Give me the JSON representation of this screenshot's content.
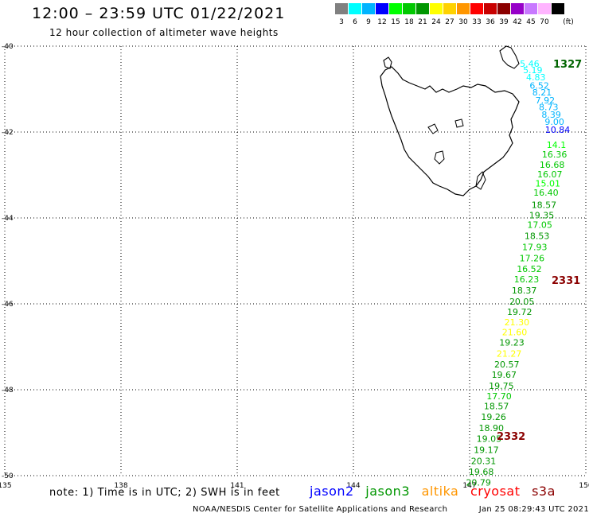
{
  "header": {
    "title": "12:00 – 23:59 UTC 01/22/2021",
    "subtitle": "12 hour collection of altimeter wave heights"
  },
  "color_scale": {
    "unit_label": "(ft)",
    "bins": [
      {
        "label": "3",
        "color": "#808080"
      },
      {
        "label": "6",
        "color": "#00ffff"
      },
      {
        "label": "9",
        "color": "#00b4ff"
      },
      {
        "label": "12",
        "color": "#0000ff"
      },
      {
        "label": "15",
        "color": "#00ff00"
      },
      {
        "label": "18",
        "color": "#00c800"
      },
      {
        "label": "21",
        "color": "#009600"
      },
      {
        "label": "24",
        "color": "#ffff00"
      },
      {
        "label": "27",
        "color": "#ffd200"
      },
      {
        "label": "30",
        "color": "#ff9600"
      },
      {
        "label": "33",
        "color": "#ff0000"
      },
      {
        "label": "36",
        "color": "#c80000"
      },
      {
        "label": "39",
        "color": "#8b0000"
      },
      {
        "label": "42",
        "color": "#9600c8"
      },
      {
        "label": "45",
        "color": "#c878ff"
      },
      {
        "label": "70",
        "color": "#ffb4ff"
      },
      {
        "label": "",
        "color": "#000000"
      }
    ]
  },
  "map": {
    "lon_range": [
      135,
      150
    ],
    "lat_range": [
      -50,
      -40
    ],
    "lon_labels": [
      "135",
      "138",
      "141",
      "144",
      "147",
      "150"
    ],
    "lat_labels": [
      "-40",
      "-42",
      "-44",
      "-46",
      "-48",
      "-50"
    ],
    "landmass": "Tasmania",
    "track_labels": [
      {
        "text": "1327",
        "color": "#006400"
      },
      {
        "text": "2331",
        "color": "#8b0000"
      },
      {
        "text": "2332",
        "color": "#8b0000"
      }
    ],
    "observations": [
      {
        "value": "5.46",
        "lon": 148.55,
        "lat": -40.48,
        "color": "#00ffff"
      },
      {
        "value": "5.19",
        "lon": 148.63,
        "lat": -40.63,
        "color": "#00ffff"
      },
      {
        "value": "4.83",
        "lon": 148.71,
        "lat": -40.8,
        "color": "#00ffff"
      },
      {
        "value": "6.52",
        "lon": 148.8,
        "lat": -40.99,
        "color": "#00b4ff"
      },
      {
        "value": "8.21",
        "lon": 148.87,
        "lat": -41.15,
        "color": "#00b4ff"
      },
      {
        "value": "7.92",
        "lon": 148.95,
        "lat": -41.33,
        "color": "#00b4ff"
      },
      {
        "value": "8.73",
        "lon": 149.04,
        "lat": -41.49,
        "color": "#00b4ff"
      },
      {
        "value": "8.39",
        "lon": 149.11,
        "lat": -41.67,
        "color": "#00b4ff"
      },
      {
        "value": "9.00",
        "lon": 149.19,
        "lat": -41.83,
        "color": "#00b4ff"
      },
      {
        "value": "10.84",
        "lon": 149.27,
        "lat": -42.02,
        "color": "#0000ff"
      },
      {
        "value": "14.1",
        "lon": 149.24,
        "lat": -42.37,
        "color": "#00ff00"
      },
      {
        "value": "16.36",
        "lon": 149.19,
        "lat": -42.59,
        "color": "#00c800"
      },
      {
        "value": "16.68",
        "lon": 149.13,
        "lat": -42.83,
        "color": "#00c800"
      },
      {
        "value": "16.07",
        "lon": 149.07,
        "lat": -43.06,
        "color": "#00c800"
      },
      {
        "value": "15.01",
        "lon": 149.02,
        "lat": -43.27,
        "color": "#00ff00"
      },
      {
        "value": "16.40",
        "lon": 148.97,
        "lat": -43.48,
        "color": "#00c800"
      },
      {
        "value": "18.57",
        "lon": 148.92,
        "lat": -43.77,
        "color": "#009600"
      },
      {
        "value": "19.35",
        "lon": 148.86,
        "lat": -44.01,
        "color": "#009600"
      },
      {
        "value": "17.05",
        "lon": 148.81,
        "lat": -44.23,
        "color": "#00c800"
      },
      {
        "value": "18.53",
        "lon": 148.74,
        "lat": -44.49,
        "color": "#009600"
      },
      {
        "value": "17.93",
        "lon": 148.68,
        "lat": -44.75,
        "color": "#00c800"
      },
      {
        "value": "17.26",
        "lon": 148.61,
        "lat": -45.01,
        "color": "#00c800"
      },
      {
        "value": "16.52",
        "lon": 148.54,
        "lat": -45.26,
        "color": "#00c800"
      },
      {
        "value": "16.23",
        "lon": 148.47,
        "lat": -45.5,
        "color": "#00c800"
      },
      {
        "value": "18.37",
        "lon": 148.41,
        "lat": -45.76,
        "color": "#009600"
      },
      {
        "value": "20.05",
        "lon": 148.35,
        "lat": -46.02,
        "color": "#009600"
      },
      {
        "value": "19.72",
        "lon": 148.29,
        "lat": -46.26,
        "color": "#009600"
      },
      {
        "value": "21.30",
        "lon": 148.22,
        "lat": -46.5,
        "color": "#ffff00"
      },
      {
        "value": "21.60",
        "lon": 148.16,
        "lat": -46.73,
        "color": "#ffff00"
      },
      {
        "value": "19.23",
        "lon": 148.09,
        "lat": -46.97,
        "color": "#009600"
      },
      {
        "value": "21.27",
        "lon": 148.02,
        "lat": -47.23,
        "color": "#ffff00"
      },
      {
        "value": "20.57",
        "lon": 147.96,
        "lat": -47.48,
        "color": "#009600"
      },
      {
        "value": "19.67",
        "lon": 147.89,
        "lat": -47.72,
        "color": "#009600"
      },
      {
        "value": "19.75",
        "lon": 147.82,
        "lat": -47.98,
        "color": "#009600"
      },
      {
        "value": "17.70",
        "lon": 147.76,
        "lat": -48.22,
        "color": "#00c800"
      },
      {
        "value": "18.57",
        "lon": 147.69,
        "lat": -48.45,
        "color": "#009600"
      },
      {
        "value": "19.26",
        "lon": 147.62,
        "lat": -48.7,
        "color": "#009600"
      },
      {
        "value": "18.90",
        "lon": 147.56,
        "lat": -48.96,
        "color": "#009600"
      },
      {
        "value": "19.05",
        "lon": 147.5,
        "lat": -49.21,
        "color": "#009600"
      },
      {
        "value": "19.17",
        "lon": 147.43,
        "lat": -49.47,
        "color": "#009600"
      },
      {
        "value": "20.31",
        "lon": 147.36,
        "lat": -49.73,
        "color": "#009600"
      },
      {
        "value": "19.68",
        "lon": 147.3,
        "lat": -49.98,
        "color": "#009600"
      },
      {
        "value": "20.79",
        "lon": 147.23,
        "lat": -50.23,
        "color": "#009600"
      }
    ]
  },
  "note": "note: 1) Time is in UTC; 2) SWH is in feet",
  "satellites": [
    {
      "name": "jason2",
      "color": "#0000ff"
    },
    {
      "name": "jason3",
      "color": "#009600"
    },
    {
      "name": "altika",
      "color": "#ff9600"
    },
    {
      "name": "cryosat",
      "color": "#ff0000"
    },
    {
      "name": "s3a",
      "color": "#8b0000"
    }
  ],
  "footer": {
    "credit": "NOAA/NESDIS Center for Satellite Applications and Research",
    "timestamp": "Jan 25 08:29:43 UTC 2021"
  }
}
